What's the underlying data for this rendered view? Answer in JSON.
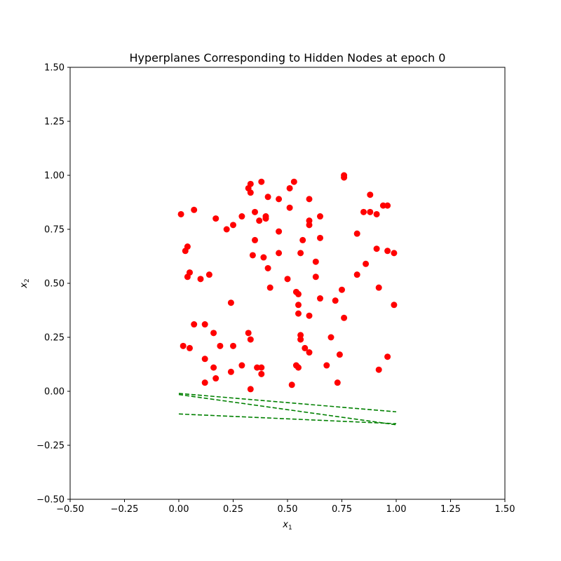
{
  "chart_data": {
    "type": "scatter",
    "title": "Hyperplanes Corresponding to Hidden Nodes at epoch 0",
    "xlabel": "x",
    "xlabel_sub": "1",
    "ylabel": "x",
    "ylabel_sub": "2",
    "xlim": [
      -0.5,
      1.5
    ],
    "ylim": [
      -0.5,
      1.5
    ],
    "xticks": [
      -0.5,
      -0.25,
      0.0,
      0.25,
      0.5,
      0.75,
      1.0,
      1.25,
      1.5
    ],
    "yticks": [
      -0.5,
      -0.25,
      0.0,
      0.25,
      0.5,
      0.75,
      1.0,
      1.25,
      1.5
    ],
    "xtick_labels": [
      "−0.50",
      "−0.25",
      "0.00",
      "0.25",
      "0.50",
      "0.75",
      "1.00",
      "1.25",
      "1.50"
    ],
    "ytick_labels": [
      "−0.50",
      "−0.25",
      "0.00",
      "0.25",
      "0.50",
      "0.75",
      "1.00",
      "1.25",
      "1.50"
    ],
    "grid": false,
    "legend": "none",
    "points_color": "#ff0000",
    "lines_color": "#008000",
    "points": [
      [
        0.01,
        0.82
      ],
      [
        0.07,
        0.84
      ],
      [
        0.17,
        0.8
      ],
      [
        0.22,
        0.75
      ],
      [
        0.25,
        0.77
      ],
      [
        0.29,
        0.81
      ],
      [
        0.32,
        0.94
      ],
      [
        0.33,
        0.92
      ],
      [
        0.33,
        0.96
      ],
      [
        0.38,
        0.97
      ],
      [
        0.35,
        0.83
      ],
      [
        0.37,
        0.79
      ],
      [
        0.4,
        0.8
      ],
      [
        0.4,
        0.81
      ],
      [
        0.41,
        0.9
      ],
      [
        0.46,
        0.89
      ],
      [
        0.51,
        0.85
      ],
      [
        0.51,
        0.94
      ],
      [
        0.53,
        0.97
      ],
      [
        0.6,
        0.89
      ],
      [
        0.6,
        0.79
      ],
      [
        0.6,
        0.77
      ],
      [
        0.65,
        0.81
      ],
      [
        0.76,
        1.0
      ],
      [
        0.76,
        0.99
      ],
      [
        0.88,
        0.91
      ],
      [
        0.82,
        0.73
      ],
      [
        0.85,
        0.83
      ],
      [
        0.88,
        0.83
      ],
      [
        0.91,
        0.82
      ],
      [
        0.94,
        0.86
      ],
      [
        0.96,
        0.86
      ],
      [
        0.03,
        0.65
      ],
      [
        0.04,
        0.67
      ],
      [
        0.05,
        0.55
      ],
      [
        0.04,
        0.53
      ],
      [
        0.1,
        0.52
      ],
      [
        0.14,
        0.54
      ],
      [
        0.35,
        0.7
      ],
      [
        0.34,
        0.63
      ],
      [
        0.39,
        0.62
      ],
      [
        0.41,
        0.57
      ],
      [
        0.46,
        0.74
      ],
      [
        0.46,
        0.64
      ],
      [
        0.57,
        0.7
      ],
      [
        0.56,
        0.64
      ],
      [
        0.63,
        0.6
      ],
      [
        0.65,
        0.71
      ],
      [
        0.63,
        0.53
      ],
      [
        0.42,
        0.48
      ],
      [
        0.5,
        0.52
      ],
      [
        0.54,
        0.46
      ],
      [
        0.55,
        0.45
      ],
      [
        0.55,
        0.4
      ],
      [
        0.55,
        0.36
      ],
      [
        0.6,
        0.35
      ],
      [
        0.65,
        0.43
      ],
      [
        0.72,
        0.42
      ],
      [
        0.75,
        0.47
      ],
      [
        0.76,
        0.34
      ],
      [
        0.86,
        0.59
      ],
      [
        0.82,
        0.54
      ],
      [
        0.91,
        0.66
      ],
      [
        0.96,
        0.65
      ],
      [
        0.99,
        0.64
      ],
      [
        0.92,
        0.48
      ],
      [
        0.99,
        0.4
      ],
      [
        0.24,
        0.41
      ],
      [
        0.07,
        0.31
      ],
      [
        0.12,
        0.31
      ],
      [
        0.16,
        0.27
      ],
      [
        0.19,
        0.21
      ],
      [
        0.25,
        0.21
      ],
      [
        0.32,
        0.27
      ],
      [
        0.33,
        0.24
      ],
      [
        0.56,
        0.26
      ],
      [
        0.56,
        0.24
      ],
      [
        0.58,
        0.2
      ],
      [
        0.6,
        0.18
      ],
      [
        0.7,
        0.25
      ],
      [
        0.74,
        0.17
      ],
      [
        0.68,
        0.12
      ],
      [
        0.73,
        0.04
      ],
      [
        0.02,
        0.21
      ],
      [
        0.05,
        0.2
      ],
      [
        0.12,
        0.15
      ],
      [
        0.16,
        0.11
      ],
      [
        0.12,
        0.04
      ],
      [
        0.17,
        0.06
      ],
      [
        0.24,
        0.09
      ],
      [
        0.29,
        0.12
      ],
      [
        0.36,
        0.11
      ],
      [
        0.38,
        0.11
      ],
      [
        0.38,
        0.08
      ],
      [
        0.33,
        0.01
      ],
      [
        0.52,
        0.03
      ],
      [
        0.54,
        0.12
      ],
      [
        0.55,
        0.11
      ],
      [
        0.92,
        0.1
      ],
      [
        0.96,
        0.16
      ]
    ],
    "lines": [
      {
        "x": [
          0.0,
          1.0
        ],
        "y": [
          -0.01,
          -0.095
        ]
      },
      {
        "x": [
          0.0,
          1.0
        ],
        "y": [
          -0.015,
          -0.155
        ]
      },
      {
        "x": [
          0.0,
          1.0
        ],
        "y": [
          -0.105,
          -0.15
        ]
      }
    ]
  }
}
